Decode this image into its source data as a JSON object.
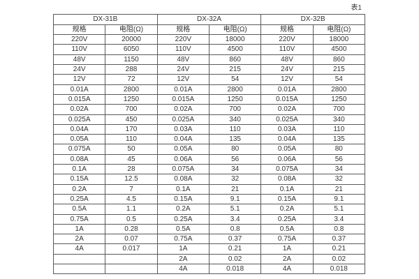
{
  "page": {
    "table_label": "表1",
    "background_color": "#ffffff",
    "border_color": "#595959",
    "text_color": "#333333"
  },
  "table": {
    "groups": [
      {
        "name": "DX-31B",
        "columns": [
          "规格",
          "电阻(Ω)"
        ]
      },
      {
        "name": "DX-32A",
        "columns": [
          "规格",
          "电阻(Ω)"
        ]
      },
      {
        "name": "DX-32B",
        "columns": [
          "规格",
          "电阻(Ω)"
        ]
      }
    ],
    "rows": [
      [
        "220V",
        "20000",
        "220V",
        "18000",
        "220V",
        "18000"
      ],
      [
        "110V",
        "6050",
        "110V",
        "4500",
        "110V",
        "4500"
      ],
      [
        "48V",
        "1150",
        "48V",
        "860",
        "48V",
        "860"
      ],
      [
        "24V",
        "288",
        "24V",
        "215",
        "24V",
        "215"
      ],
      [
        "12V",
        "72",
        "12V",
        "54",
        "12V",
        "54"
      ],
      [
        "0.01A",
        "2800",
        "0.01A",
        "2800",
        "0.01A",
        "2800"
      ],
      [
        "0.015A",
        "1250",
        "0.015A",
        "1250",
        "0.015A",
        "1250"
      ],
      [
        "0.02A",
        "700",
        "0.02A",
        "700",
        "0.02A",
        "700"
      ],
      [
        "0.025A",
        "450",
        "0.025A",
        "340",
        "0.025A",
        "340"
      ],
      [
        "0.04A",
        "170",
        "0.03A",
        "110",
        "0.03A",
        "110"
      ],
      [
        "0.05A",
        "110",
        "0.04A",
        "135",
        "0.04A",
        "135"
      ],
      [
        "0.075A",
        "50",
        "0.05A",
        "80",
        "0.05A",
        "80"
      ],
      [
        "0.08A",
        "45",
        "0.06A",
        "56",
        "0.06A",
        "56"
      ],
      [
        "0.1A",
        "28",
        "0.075A",
        "34",
        "0.075A",
        "34"
      ],
      [
        "0.15A",
        "12.5",
        "0.08A",
        "32",
        "0.08A",
        "32"
      ],
      [
        "0.2A",
        "7",
        "0.1A",
        "21",
        "0.1A",
        "21"
      ],
      [
        "0.25A",
        "4.5",
        "0.15A",
        "9.1",
        "0.15A",
        "9.1"
      ],
      [
        "0.5A",
        "1.1",
        "0.2A",
        "5.1",
        "0.2A",
        "5.1"
      ],
      [
        "0.75A",
        "0.5",
        "0.25A",
        "3.4",
        "0.25A",
        "3.4"
      ],
      [
        "1A",
        "0.28",
        "0.5A",
        "0.8",
        "0.5A",
        "0.8"
      ],
      [
        "2A",
        "0.07",
        "0.75A",
        "0.37",
        "0.75A",
        "0.37"
      ],
      [
        "4A",
        "0.017",
        "1A",
        "0.21",
        "1A",
        "0.21"
      ],
      [
        "",
        "",
        "2A",
        "0.02",
        "2A",
        "0.02"
      ],
      [
        "",
        "",
        "4A",
        "0.018",
        "4A",
        "0.018"
      ]
    ]
  }
}
